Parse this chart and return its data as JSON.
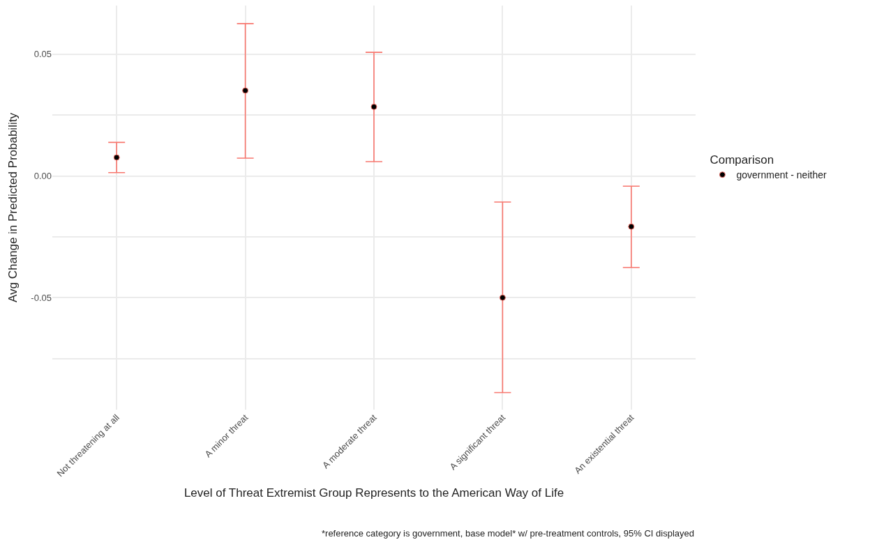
{
  "chart_data": {
    "type": "scatter",
    "xlabel": "Level of Threat Extremist Group Represents to the American Way of Life",
    "ylabel": "Avg Change in Predicted Probability",
    "legend_title": "Comparison",
    "categories": [
      "Not threatening at all",
      "A minor threat",
      "A moderate threat",
      "A significant threat",
      "An existential threat"
    ],
    "series": [
      {
        "name": "government - neither",
        "color": "#f8766d",
        "values": [
          0.0076,
          0.0351,
          0.0284,
          -0.05,
          -0.0208
        ],
        "errors": [
          [
            0.0014,
            0.0138
          ],
          [
            0.0073,
            0.0626
          ],
          [
            0.0059,
            0.0508
          ],
          [
            -0.089,
            -0.0107
          ],
          [
            -0.0376,
            -0.0042
          ]
        ]
      }
    ],
    "ylim": [
      -0.096,
      0.07
    ],
    "yticks": [
      {
        "value": -0.075,
        "label": null
      },
      {
        "value": -0.05,
        "label": "-0.05"
      },
      {
        "value": -0.025,
        "label": null
      },
      {
        "value": 0,
        "label": "0.00"
      },
      {
        "value": 0.025,
        "label": null
      },
      {
        "value": 0.05,
        "label": "0.05"
      }
    ],
    "grid": true,
    "legend": "right",
    "marker": "circle",
    "annotations": [
      "*reference category is government, base model* w/ pre-treatment controls, 95% CI displayed"
    ]
  }
}
